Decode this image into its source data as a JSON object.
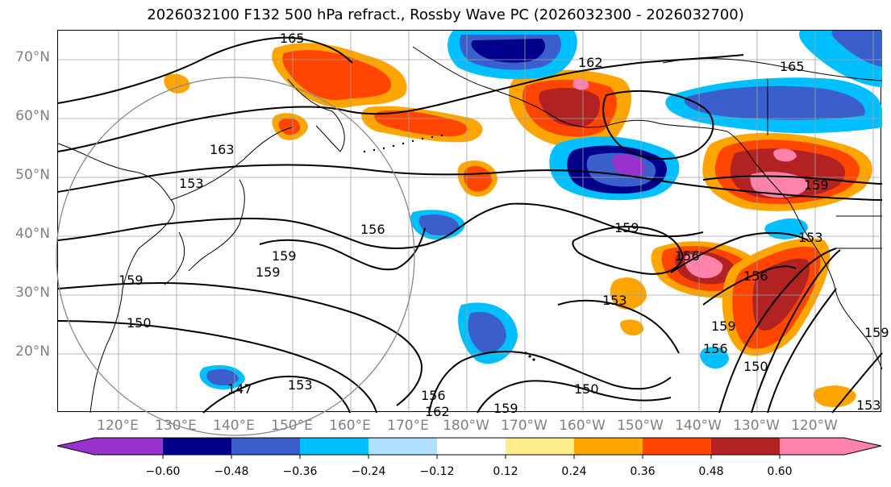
{
  "title": "2026032100 F132 500 hPa refract., Rossby Wave PC (2026032300 - 2026032700)",
  "lat_labels": [
    "70°N",
    "60°N",
    "50°N",
    "40°N",
    "30°N",
    "20°N"
  ],
  "lon_labels": [
    "120°E",
    "130°E",
    "140°E",
    "150°E",
    "160°E",
    "170°E",
    "180°W",
    "170°W",
    "160°W",
    "150°W",
    "140°W",
    "130°W",
    "120°W"
  ],
  "contour_labels": [
    "165",
    "162",
    "165",
    "163",
    "156",
    "159",
    "159",
    "150",
    "147",
    "153",
    "156",
    "159",
    "162",
    "159",
    "156",
    "153",
    "150",
    "156",
    "159",
    "156",
    "153",
    "159",
    "150",
    "153",
    "159",
    "153",
    "159"
  ],
  "colorbar": {
    "ticks": [
      "−0.60",
      "−0.48",
      "−0.36",
      "−0.24",
      "−0.12",
      "0.12",
      "0.24",
      "0.36",
      "0.48",
      "0.60"
    ],
    "colors": [
      "#9932cc",
      "#00008b",
      "#3a5fcd",
      "#00bfff",
      "#b0e2ff",
      "#ffffff",
      "#ffec8b",
      "#ffa500",
      "#ff4500",
      "#b22222",
      "#ff82ab"
    ]
  },
  "colors": {
    "grid": "#a0a0a0",
    "contour": "#000000",
    "coast": "#000000",
    "circle": "#888888",
    "axis_label": "#808080"
  }
}
